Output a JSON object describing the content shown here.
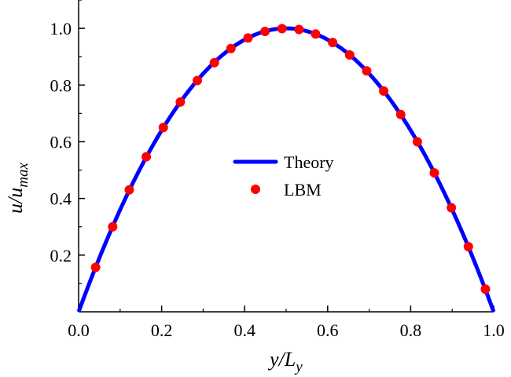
{
  "chart_data": {
    "type": "line",
    "xlabel": {
      "main": "y/L",
      "sub": "y"
    },
    "ylabel": {
      "main": "u/u",
      "sub": "max"
    },
    "xlim": [
      0.0,
      1.0
    ],
    "ylim": [
      0.0,
      1.1
    ],
    "x_ticks": [
      0.0,
      0.2,
      0.4,
      0.6,
      0.8,
      1.0
    ],
    "x_tick_labels": [
      "0.0",
      "0.2",
      "0.4",
      "0.6",
      "0.8",
      "1.0"
    ],
    "y_ticks": [
      0.2,
      0.4,
      0.6,
      0.8,
      1.0
    ],
    "y_tick_labels": [
      "0.2",
      "0.4",
      "0.6",
      "0.8",
      "1.0"
    ],
    "grid": false,
    "legend_position": "center",
    "series": [
      {
        "name": "Theory",
        "kind": "line",
        "color": "#0000ff",
        "function": "4*x*(1-x)",
        "x": [
          0.0,
          0.05,
          0.1,
          0.15,
          0.2,
          0.25,
          0.3,
          0.35,
          0.4,
          0.45,
          0.5,
          0.55,
          0.6,
          0.65,
          0.7,
          0.75,
          0.8,
          0.85,
          0.9,
          0.95,
          1.0
        ],
        "y": [
          0.0,
          0.19,
          0.36,
          0.51,
          0.64,
          0.75,
          0.84,
          0.91,
          0.96,
          0.99,
          1.0,
          0.99,
          0.96,
          0.91,
          0.84,
          0.75,
          0.64,
          0.51,
          0.36,
          0.19,
          0.0
        ]
      },
      {
        "name": "LBM",
        "kind": "scatter",
        "color": "#ff0000",
        "x": [
          0.041,
          0.082,
          0.122,
          0.163,
          0.204,
          0.245,
          0.286,
          0.327,
          0.367,
          0.408,
          0.449,
          0.49,
          0.531,
          0.571,
          0.612,
          0.653,
          0.694,
          0.735,
          0.776,
          0.816,
          0.857,
          0.898,
          0.939,
          0.98
        ],
        "y": [
          0.157,
          0.3,
          0.43,
          0.547,
          0.65,
          0.74,
          0.816,
          0.879,
          0.929,
          0.966,
          0.989,
          0.999,
          0.996,
          0.98,
          0.95,
          0.906,
          0.85,
          0.779,
          0.696,
          0.6,
          0.49,
          0.367,
          0.23,
          0.08
        ]
      }
    ]
  }
}
